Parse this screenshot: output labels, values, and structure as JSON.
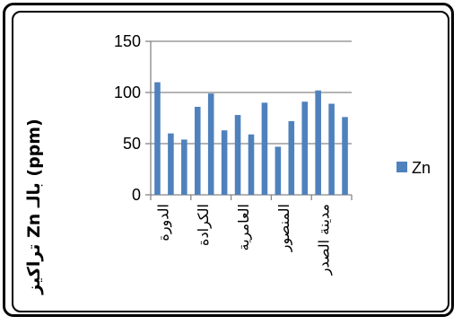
{
  "chart_data": {
    "type": "bar",
    "ylabel": "تراكيز Zn بالـ (ppm)",
    "ylim": [
      0,
      150
    ],
    "yticks": [
      0,
      50,
      100,
      150
    ],
    "grid": true,
    "legend_position": "right",
    "series": [
      {
        "name": "Zn",
        "color": "#4F81BD",
        "values": [
          110,
          60,
          54,
          86,
          99,
          63,
          78,
          59,
          90,
          47,
          72,
          91,
          102,
          89,
          76
        ]
      }
    ],
    "category_labels": [
      "الدورة",
      "الكرادة",
      "العامرية",
      "المنصور",
      "مدينة الصدر"
    ]
  }
}
